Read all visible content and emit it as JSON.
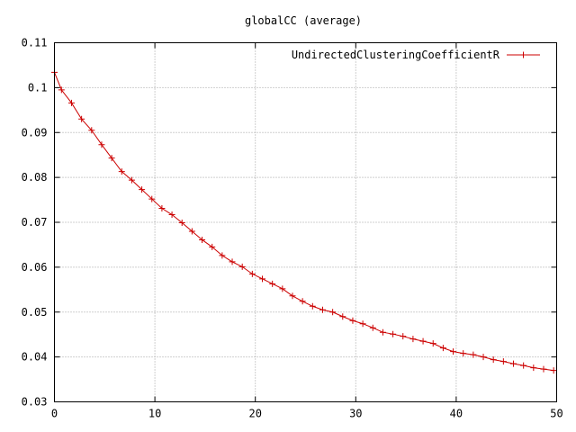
{
  "chart_data": {
    "type": "line",
    "title": "globalCC (average)",
    "xlabel": "",
    "ylabel": "",
    "xlim": [
      0,
      50
    ],
    "ylim": [
      0.03,
      0.11
    ],
    "x_ticks": [
      "0",
      "10",
      "20",
      "30",
      "40",
      "50"
    ],
    "y_ticks": [
      "0.03",
      "0.04",
      "0.05",
      "0.06",
      "0.07",
      "0.08",
      "0.09",
      "0.1",
      "0.11"
    ],
    "grid": true,
    "legend_position": "top-right",
    "series": [
      {
        "name": "UndirectedClusteringCoefficientR",
        "color": "#cc0000",
        "marker": "plus",
        "x": [
          -0.3,
          0.7,
          1.7,
          2.7,
          3.7,
          4.7,
          5.7,
          6.7,
          7.7,
          8.7,
          9.7,
          10.7,
          11.7,
          12.7,
          13.7,
          14.7,
          15.7,
          16.7,
          17.7,
          18.7,
          19.7,
          20.7,
          21.7,
          22.7,
          23.7,
          24.7,
          25.7,
          26.7,
          27.7,
          28.7,
          29.7,
          30.7,
          31.7,
          32.7,
          33.7,
          34.7,
          35.7,
          36.7,
          37.7,
          38.7,
          39.7,
          40.7,
          41.7,
          42.7,
          43.7,
          44.7,
          45.7,
          46.7,
          47.7,
          48.7,
          49.7
        ],
        "y": [
          0.1034,
          0.0995,
          0.0966,
          0.093,
          0.0905,
          0.0873,
          0.0843,
          0.0813,
          0.0794,
          0.0773,
          0.0752,
          0.0731,
          0.0717,
          0.0699,
          0.068,
          0.0661,
          0.0645,
          0.0626,
          0.0612,
          0.0601,
          0.0585,
          0.0574,
          0.0563,
          0.0552,
          0.0536,
          0.0524,
          0.0513,
          0.0505,
          0.05,
          0.049,
          0.0481,
          0.0474,
          0.0465,
          0.0455,
          0.0451,
          0.0446,
          0.044,
          0.0435,
          0.043,
          0.042,
          0.0412,
          0.0408,
          0.0405,
          0.04,
          0.0394,
          0.039,
          0.0385,
          0.0381,
          0.0376,
          0.0373,
          0.037
        ]
      }
    ]
  }
}
